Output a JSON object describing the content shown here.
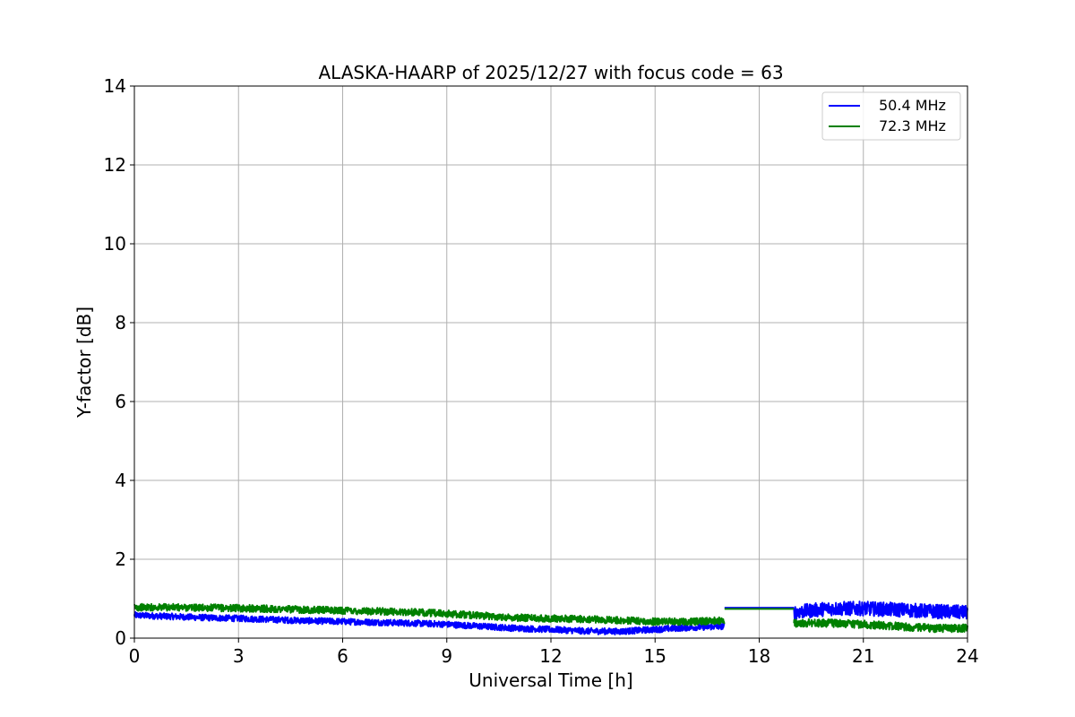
{
  "chart_data": {
    "type": "line",
    "title": "ALASKA-HAARP of 2025/12/27 with focus code = 63",
    "xlabel": "Universal Time [h]",
    "ylabel": "Y-factor [dB]",
    "xlim": [
      0,
      24
    ],
    "ylim": [
      0,
      14
    ],
    "xticks": [
      0,
      3,
      6,
      9,
      12,
      15,
      18,
      21,
      24
    ],
    "yticks": [
      0,
      2,
      4,
      6,
      8,
      10,
      12,
      14
    ],
    "grid": true,
    "legend_position": "top-right",
    "series": [
      {
        "name": "50.4 MHz",
        "color": "#0000ff",
        "segments": [
          {
            "x": [
              0,
              1,
              2,
              3,
              4,
              5,
              6,
              7,
              8,
              9,
              10,
              11,
              12,
              13,
              14,
              15,
              16,
              17
            ],
            "y": [
              0.58,
              0.55,
              0.52,
              0.5,
              0.47,
              0.44,
              0.42,
              0.4,
              0.38,
              0.35,
              0.3,
              0.25,
              0.22,
              0.18,
              0.17,
              0.22,
              0.27,
              0.3
            ],
            "spread": 0.08
          },
          {
            "x": [
              17,
              19
            ],
            "y": [
              0.77,
              0.77
            ],
            "spread": 0
          },
          {
            "x": [
              19,
              20,
              21,
              22,
              23,
              24
            ],
            "y": [
              0.65,
              0.75,
              0.75,
              0.72,
              0.68,
              0.65
            ],
            "spread": 0.18
          }
        ]
      },
      {
        "name": "72.3 MHz",
        "color": "#008000",
        "segments": [
          {
            "x": [
              0,
              1,
              2,
              3,
              4,
              5,
              6,
              7,
              8,
              9,
              10,
              11,
              12,
              13,
              14,
              15,
              16,
              17
            ],
            "y": [
              0.78,
              0.78,
              0.77,
              0.76,
              0.74,
              0.72,
              0.7,
              0.68,
              0.66,
              0.62,
              0.57,
              0.52,
              0.5,
              0.48,
              0.45,
              0.42,
              0.42,
              0.45
            ],
            "spread": 0.09
          },
          {
            "x": [
              17,
              19
            ],
            "y": [
              0.74,
              0.74
            ],
            "spread": 0
          },
          {
            "x": [
              19,
              20,
              21,
              22,
              23,
              24
            ],
            "y": [
              0.38,
              0.38,
              0.35,
              0.3,
              0.25,
              0.25
            ],
            "spread": 0.1
          }
        ]
      }
    ]
  }
}
